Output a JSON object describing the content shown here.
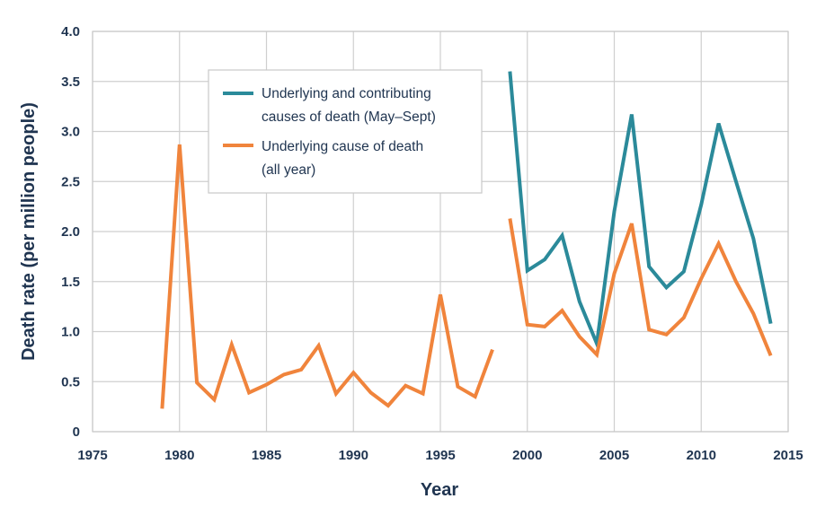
{
  "chart_data": {
    "type": "line",
    "title": "",
    "xlabel": "Year",
    "ylabel": "Death rate (per million people)",
    "xlim": [
      1975,
      2015
    ],
    "ylim": [
      0,
      4.0
    ],
    "xticks": [
      1975,
      1980,
      1985,
      1990,
      1995,
      2000,
      2005,
      2010,
      2015
    ],
    "yticks": [
      0,
      0.5,
      1.0,
      1.5,
      2.0,
      2.5,
      3.0,
      3.5,
      4.0
    ],
    "xtick_labels": [
      "1975",
      "1980",
      "1985",
      "1990",
      "1995",
      "2000",
      "2005",
      "2010",
      "2015"
    ],
    "ytick_labels": [
      "0",
      "0.5",
      "1.0",
      "1.5",
      "2.0",
      "2.5",
      "3.0",
      "3.5",
      "4.0"
    ],
    "grid": true,
    "legend_position": "top-center",
    "series": [
      {
        "name": "Underlying and contributing causes of death (May–Sept)",
        "legend_lines": [
          "Underlying and contributing",
          "causes of death (May–Sept)"
        ],
        "color": "#2b8a9a",
        "segments": [
          {
            "x": [
              1999,
              2000,
              2001,
              2002,
              2003,
              2004,
              2005,
              2006,
              2007,
              2008,
              2009,
              2010,
              2011,
              2012,
              2013,
              2014
            ],
            "y": [
              3.6,
              1.61,
              1.72,
              1.96,
              1.3,
              0.88,
              2.2,
              3.17,
              1.65,
              1.44,
              1.6,
              2.27,
              3.08,
              2.5,
              1.93,
              1.08
            ]
          }
        ]
      },
      {
        "name": "Underlying cause of death (all year)",
        "legend_lines": [
          "Underlying cause of death",
          "(all year)"
        ],
        "color": "#f0843c",
        "segments": [
          {
            "x": [
              1979,
              1980,
              1981,
              1982,
              1983,
              1984,
              1985,
              1986,
              1987,
              1988,
              1989,
              1990,
              1991,
              1992,
              1993,
              1994,
              1995,
              1996,
              1997,
              1998
            ],
            "y": [
              0.23,
              2.87,
              0.49,
              0.32,
              0.87,
              0.39,
              0.47,
              0.57,
              0.62,
              0.86,
              0.38,
              0.59,
              0.39,
              0.26,
              0.46,
              0.38,
              1.37,
              0.45,
              0.35,
              0.82
            ]
          },
          {
            "x": [
              1999,
              2000,
              2001,
              2002,
              2003,
              2004,
              2005,
              2006,
              2007,
              2008,
              2009,
              2010,
              2011,
              2012,
              2013,
              2014
            ],
            "y": [
              2.13,
              1.07,
              1.05,
              1.21,
              0.95,
              0.77,
              1.58,
              2.08,
              1.02,
              0.97,
              1.14,
              1.53,
              1.88,
              1.5,
              1.18,
              0.76
            ]
          }
        ]
      }
    ]
  }
}
